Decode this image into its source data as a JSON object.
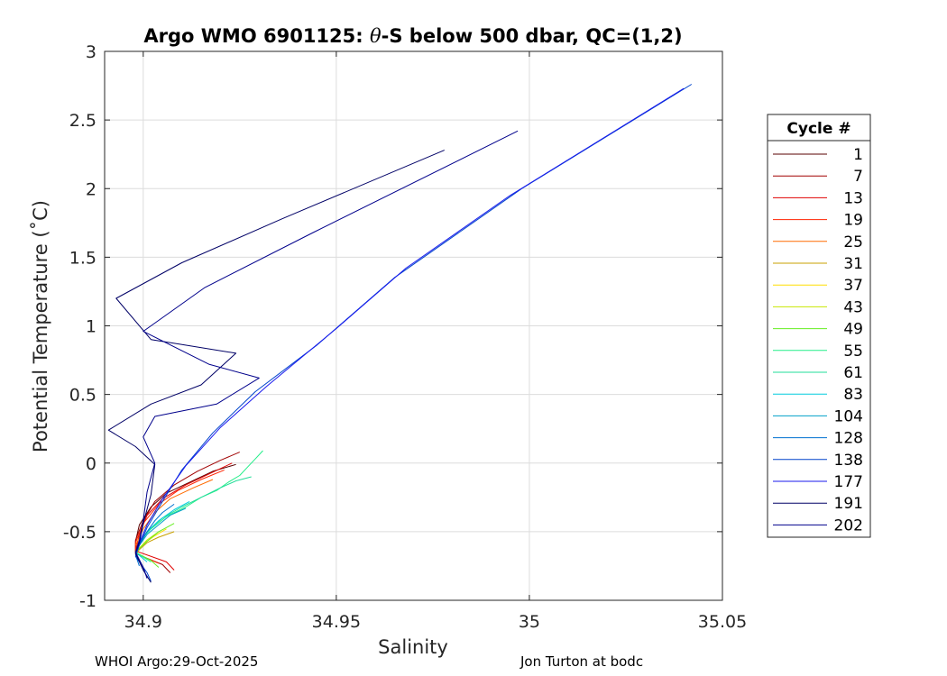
{
  "chart_data": {
    "type": "line",
    "title": {
      "prefix": "Argo WMO 6901125: ",
      "symbol": "θ",
      "suffix": "-S below 500 dbar,  QC=(1,2)"
    },
    "xlabel": "Salinity",
    "ylabel": "Potential Temperature (˚C)",
    "xlim": [
      34.89,
      35.05
    ],
    "ylim": [
      -1,
      3
    ],
    "xticks": [
      34.9,
      34.95,
      35,
      35.05
    ],
    "xtick_labels": [
      "34.9",
      "34.95",
      "35",
      "35.05"
    ],
    "yticks": [
      -1,
      -0.5,
      0,
      0.5,
      1,
      1.5,
      2,
      2.5,
      3
    ],
    "ytick_labels": [
      "-1",
      "-0.5",
      "0",
      "0.5",
      "1",
      "1.5",
      "2",
      "2.5",
      "3"
    ],
    "grid": true,
    "legend_title": "Cycle #",
    "legend_position": "outside-right",
    "series": [
      {
        "name": "1",
        "color": "#5a0000",
        "points": [
          [
            34.924,
            -0.01
          ],
          [
            34.918,
            -0.06
          ],
          [
            34.912,
            -0.14
          ],
          [
            34.906,
            -0.22
          ],
          [
            34.902,
            -0.32
          ],
          [
            34.899,
            -0.45
          ],
          [
            34.898,
            -0.57
          ],
          [
            34.898,
            -0.65
          ]
        ]
      },
      {
        "name": "7",
        "color": "#a00000",
        "points": [
          [
            34.925,
            0.08
          ],
          [
            34.92,
            0.02
          ],
          [
            34.914,
            -0.06
          ],
          [
            34.908,
            -0.16
          ],
          [
            34.903,
            -0.28
          ],
          [
            34.9,
            -0.42
          ],
          [
            34.898,
            -0.56
          ],
          [
            34.898,
            -0.66
          ],
          [
            34.905,
            -0.74
          ],
          [
            34.907,
            -0.8
          ]
        ]
      },
      {
        "name": "13",
        "color": "#e00000",
        "points": [
          [
            34.923,
            0.0
          ],
          [
            34.917,
            -0.08
          ],
          [
            34.911,
            -0.16
          ],
          [
            34.905,
            -0.26
          ],
          [
            34.901,
            -0.38
          ],
          [
            34.899,
            -0.52
          ],
          [
            34.898,
            -0.64
          ],
          [
            34.906,
            -0.72
          ],
          [
            34.908,
            -0.78
          ]
        ]
      },
      {
        "name": "19",
        "color": "#ff2200",
        "points": [
          [
            34.921,
            -0.05
          ],
          [
            34.915,
            -0.12
          ],
          [
            34.909,
            -0.2
          ],
          [
            34.904,
            -0.3
          ],
          [
            34.9,
            -0.44
          ],
          [
            34.898,
            -0.58
          ],
          [
            34.898,
            -0.66
          ],
          [
            34.904,
            -0.73
          ]
        ]
      },
      {
        "name": "25",
        "color": "#ff6a00",
        "points": [
          [
            34.918,
            -0.12
          ],
          [
            34.913,
            -0.18
          ],
          [
            34.907,
            -0.26
          ],
          [
            34.903,
            -0.36
          ],
          [
            34.9,
            -0.48
          ],
          [
            34.898,
            -0.6
          ]
        ]
      },
      {
        "name": "31",
        "color": "#c8a000",
        "points": [
          [
            34.908,
            -0.5
          ],
          [
            34.904,
            -0.54
          ],
          [
            34.901,
            -0.58
          ],
          [
            34.899,
            -0.63
          ],
          [
            34.898,
            -0.67
          ]
        ]
      },
      {
        "name": "37",
        "color": "#ffdd00",
        "points": [
          [
            34.906,
            -0.48
          ],
          [
            34.903,
            -0.53
          ],
          [
            34.9,
            -0.59
          ],
          [
            34.898,
            -0.65
          ]
        ]
      },
      {
        "name": "43",
        "color": "#c8e600",
        "points": [
          [
            34.904,
            -0.5
          ],
          [
            34.901,
            -0.56
          ],
          [
            34.899,
            -0.62
          ],
          [
            34.898,
            -0.67
          ]
        ]
      },
      {
        "name": "49",
        "color": "#66ee22",
        "points": [
          [
            34.908,
            -0.44
          ],
          [
            34.904,
            -0.5
          ],
          [
            34.901,
            -0.57
          ],
          [
            34.898,
            -0.65
          ],
          [
            34.902,
            -0.71
          ],
          [
            34.904,
            -0.76
          ]
        ]
      },
      {
        "name": "55",
        "color": "#22ee88",
        "points": [
          [
            34.931,
            0.09
          ],
          [
            34.929,
            0.03
          ],
          [
            34.927,
            -0.03
          ],
          [
            34.925,
            -0.09
          ],
          [
            34.922,
            -0.14
          ],
          [
            34.919,
            -0.2
          ],
          [
            34.915,
            -0.25
          ],
          [
            34.911,
            -0.32
          ],
          [
            34.906,
            -0.39
          ],
          [
            34.902,
            -0.48
          ],
          [
            34.899,
            -0.57
          ],
          [
            34.898,
            -0.65
          ],
          [
            34.902,
            -0.72
          ]
        ]
      },
      {
        "name": "61",
        "color": "#22dd99",
        "points": [
          [
            34.928,
            -0.1
          ],
          [
            34.924,
            -0.13
          ],
          [
            34.92,
            -0.18
          ],
          [
            34.915,
            -0.25
          ],
          [
            34.91,
            -0.32
          ],
          [
            34.905,
            -0.4
          ],
          [
            34.901,
            -0.5
          ],
          [
            34.899,
            -0.6
          ],
          [
            34.898,
            -0.66
          ]
        ]
      },
      {
        "name": "83",
        "color": "#00ccdd",
        "points": [
          [
            34.912,
            -0.28
          ],
          [
            34.908,
            -0.34
          ],
          [
            34.904,
            -0.42
          ],
          [
            34.901,
            -0.5
          ],
          [
            34.899,
            -0.58
          ],
          [
            34.898,
            -0.65
          ],
          [
            34.901,
            -0.72
          ]
        ]
      },
      {
        "name": "104",
        "color": "#00a0c8",
        "points": [
          [
            34.911,
            -0.33
          ],
          [
            34.907,
            -0.38
          ],
          [
            34.904,
            -0.45
          ],
          [
            34.901,
            -0.52
          ],
          [
            34.899,
            -0.6
          ],
          [
            34.898,
            -0.66
          ]
        ]
      },
      {
        "name": "128",
        "color": "#0070d0",
        "points": [
          [
            34.908,
            -0.3
          ],
          [
            34.905,
            -0.36
          ],
          [
            34.903,
            -0.42
          ],
          [
            34.901,
            -0.5
          ],
          [
            34.899,
            -0.59
          ],
          [
            34.898,
            -0.67
          ],
          [
            34.899,
            -0.75
          ]
        ]
      },
      {
        "name": "138",
        "color": "#0044cc",
        "points": [
          [
            35.042,
            2.76
          ],
          [
            34.998,
            2.0
          ],
          [
            34.965,
            1.35
          ],
          [
            34.945,
            0.86
          ],
          [
            34.929,
            0.52
          ],
          [
            34.918,
            0.22
          ],
          [
            34.91,
            -0.05
          ],
          [
            34.905,
            -0.28
          ],
          [
            34.901,
            -0.47
          ],
          [
            34.899,
            -0.6
          ],
          [
            34.898,
            -0.68
          ],
          [
            34.901,
            -0.8
          ],
          [
            34.902,
            -0.86
          ]
        ]
      },
      {
        "name": "177",
        "color": "#1a1aee",
        "points": [
          [
            35.04,
            2.73
          ],
          [
            34.995,
            1.95
          ],
          [
            34.968,
            1.42
          ],
          [
            34.95,
            0.98
          ],
          [
            34.932,
            0.56
          ],
          [
            34.92,
            0.26
          ],
          [
            34.911,
            -0.02
          ],
          [
            34.905,
            -0.26
          ],
          [
            34.901,
            -0.45
          ],
          [
            34.899,
            -0.58
          ],
          [
            34.898,
            -0.66
          ],
          [
            34.9,
            -0.76
          ],
          [
            34.901,
            -0.84
          ]
        ]
      },
      {
        "name": "191",
        "color": "#000066",
        "points": [
          [
            34.978,
            2.28
          ],
          [
            34.936,
            1.78
          ],
          [
            34.91,
            1.46
          ],
          [
            34.893,
            1.2
          ],
          [
            34.902,
            0.9
          ],
          [
            34.924,
            0.8
          ],
          [
            34.915,
            0.57
          ],
          [
            34.902,
            0.43
          ],
          [
            34.891,
            0.24
          ],
          [
            34.898,
            0.12
          ],
          [
            34.903,
            -0.01
          ],
          [
            34.902,
            -0.23
          ],
          [
            34.9,
            -0.44
          ],
          [
            34.899,
            -0.58
          ],
          [
            34.898,
            -0.66
          ],
          [
            34.9,
            -0.78
          ],
          [
            34.902,
            -0.87
          ]
        ]
      },
      {
        "name": "202",
        "color": "#00008b",
        "points": [
          [
            34.997,
            2.42
          ],
          [
            34.944,
            1.68
          ],
          [
            34.916,
            1.28
          ],
          [
            34.9,
            0.96
          ],
          [
            34.917,
            0.72
          ],
          [
            34.93,
            0.62
          ],
          [
            34.919,
            0.43
          ],
          [
            34.903,
            0.34
          ],
          [
            34.9,
            0.19
          ],
          [
            34.903,
            0.0
          ],
          [
            34.901,
            -0.21
          ],
          [
            34.9,
            -0.42
          ],
          [
            34.899,
            -0.56
          ],
          [
            34.898,
            -0.65
          ],
          [
            34.9,
            -0.76
          ],
          [
            34.901,
            -0.84
          ]
        ]
      }
    ]
  },
  "footer": {
    "left": "WHOI Argo:29-Oct-2025",
    "right": "Jon Turton at bodc"
  }
}
